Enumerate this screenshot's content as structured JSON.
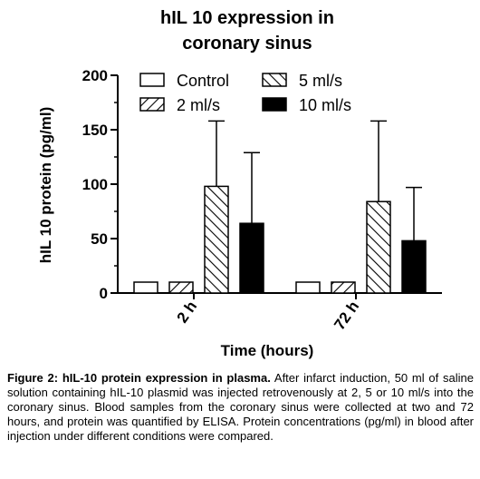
{
  "chart_data": {
    "type": "bar",
    "title_line1": "hIL 10 expression in",
    "title_line2": "coronary sinus",
    "xlabel": "Time (hours)",
    "ylabel": "hIL 10 protein (pg/ml)",
    "ylim": [
      0,
      200
    ],
    "yticks": [
      0,
      50,
      100,
      150,
      200
    ],
    "ytick_labels": [
      "0",
      "50",
      "100",
      "150",
      "200"
    ],
    "grid": false,
    "legend_position": "top",
    "categories": [
      "2 h",
      "72 h"
    ],
    "series": [
      {
        "name": "Control",
        "pattern": "empty",
        "values": [
          10,
          10
        ],
        "errors": [
          null,
          null
        ]
      },
      {
        "name": "2 ml/s",
        "pattern": "hatch-forward",
        "values": [
          10,
          10
        ],
        "errors": [
          null,
          null
        ]
      },
      {
        "name": "5 ml/s",
        "pattern": "hatch-back",
        "values": [
          98,
          84
        ],
        "errors": [
          158,
          158
        ]
      },
      {
        "name": "10 ml/s",
        "pattern": "solid",
        "values": [
          64,
          48
        ],
        "errors": [
          129,
          97
        ]
      }
    ]
  },
  "caption": {
    "label": "Figure 2: hIL-10 protein expression in plasma.",
    "text": " After infarct induction, 50 ml of saline solution containing hIL-10 plasmid was injected retrovenously at 2, 5 or 10 ml/s into the coronary sinus. Blood samples from the coronary sinus were collected at two and 72 hours, and protein was quantified by ELISA. Protein concentrations (pg/ml) in blood after injection under different conditions were compared."
  }
}
